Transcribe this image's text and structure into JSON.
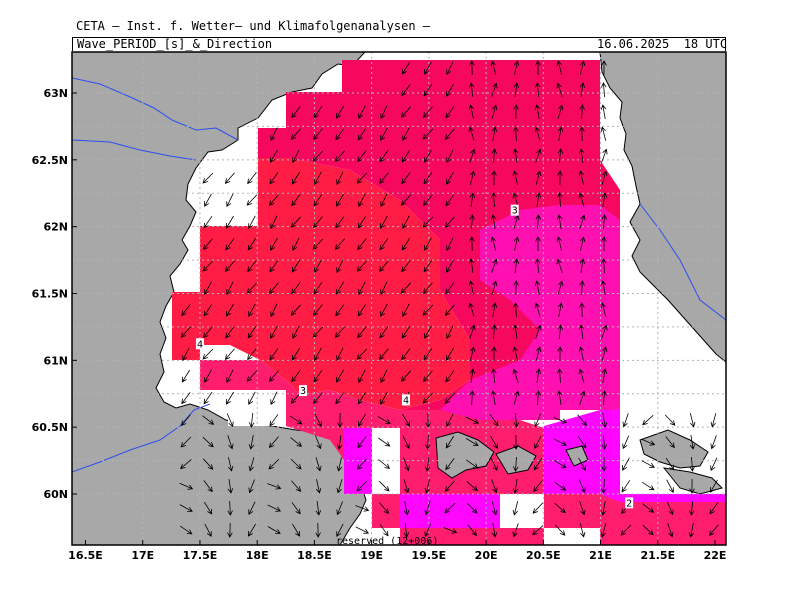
{
  "header": {
    "source": "CETA — Inst. f. Wetter— und Klimafolgenanalysen —",
    "parameter": "Wave_PERIOD_[s]_&_Direction",
    "datetime": "16.06.2025  18 UTC"
  },
  "footer": {
    "text": "reserved (12+006)"
  },
  "axes": {
    "x_ticks": [
      "16.5E",
      "17E",
      "17.5E",
      "18E",
      "18.5E",
      "19E",
      "19.5E",
      "20E",
      "20.5E",
      "21E",
      "21.5E",
      "22E"
    ],
    "y_ticks": [
      "63N",
      "62.5N",
      "62N",
      "61.5N",
      "61N",
      "60.5N",
      "60N"
    ]
  },
  "contour_labels": [
    {
      "text": "3",
      "lon": 20.25,
      "lat": 62.12
    },
    {
      "text": "4",
      "lon": 17.5,
      "lat": 61.12
    },
    {
      "text": "3",
      "lon": 18.4,
      "lat": 60.77
    },
    {
      "text": "4",
      "lon": 19.3,
      "lat": 60.7
    },
    {
      "text": "2",
      "lon": 21.25,
      "lat": 59.93
    }
  ],
  "colors": {
    "land": "#a8a8a8",
    "period_4_5": "#ff1d46",
    "period_3_4": "#f7085f",
    "period_3_4b": "#ff1e6e",
    "period_2_3": "#ff10b0",
    "period_1_2": "#ff06ff",
    "rivers": "#2c4ff0",
    "grid": "#b4b4b4"
  },
  "legend_note": "wave direction arrows"
}
